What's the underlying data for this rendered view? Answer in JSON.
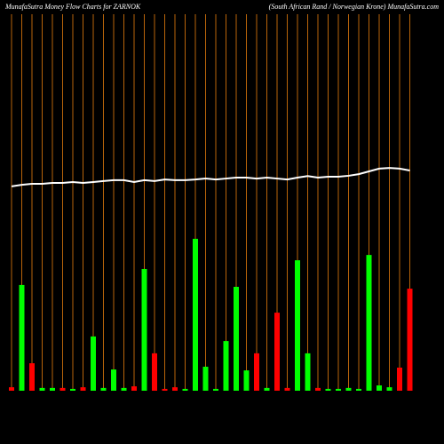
{
  "chart_data": {
    "type": "bar",
    "title": "MunafaSutra  Money Flow  Charts for ZARNOK",
    "subtitle": "(South African Rand / Norwegian Krone) MunafaSutra.com",
    "ylim": [
      0,
      100
    ],
    "values": [
      1.5,
      45.8,
      11.9,
      1.2,
      1.2,
      1.2,
      0.8,
      1.5,
      23.5,
      1.2,
      9.2,
      1.2,
      1.9,
      52.7,
      16.2,
      0.8,
      1.5,
      0.8,
      65.8,
      10.4,
      0.8,
      21.5,
      45,
      8.8,
      16.2,
      1.2,
      33.8,
      1.2,
      56.5,
      16.2,
      1.2,
      0.8,
      0.8,
      1.2,
      0.8,
      58.8,
      2.3,
      1.5,
      10,
      44.2
    ],
    "colors": [
      "#ff0000",
      "#00ff00",
      "#ff0000",
      "#00ff00",
      "#00ff00",
      "#ff0000",
      "#00ff00",
      "#ff0000",
      "#00ff00",
      "#00ff00",
      "#00ff00",
      "#00ff00",
      "#ff0000",
      "#00ff00",
      "#ff0000",
      "#ff0000",
      "#ff0000",
      "#00ff00",
      "#00ff00",
      "#00ff00",
      "#00ff00",
      "#00ff00",
      "#00ff00",
      "#00ff00",
      "#ff0000",
      "#00ff00",
      "#ff0000",
      "#ff0000",
      "#00ff00",
      "#00ff00",
      "#ff0000",
      "#00ff00",
      "#00ff00",
      "#00ff00",
      "#00ff00",
      "#00ff00",
      "#00ff00",
      "#00ff00",
      "#ff0000",
      "#ff0000"
    ],
    "line_values": [
      88.5,
      89.2,
      89.6,
      89.6,
      90,
      90,
      90.4,
      90,
      90.4,
      90.8,
      91.2,
      91.2,
      90.4,
      91.2,
      90.8,
      91.5,
      91.2,
      91.2,
      91.5,
      91.9,
      91.5,
      91.9,
      92.3,
      92.3,
      91.9,
      92.3,
      91.9,
      91.5,
      92.3,
      93,
      92.3,
      92.7,
      92.7,
      93.1,
      93.8,
      95,
      96.2,
      96.5,
      96.2,
      95.4
    ],
    "line_color": "#ffffff",
    "gridline_color": "#b8640a"
  }
}
